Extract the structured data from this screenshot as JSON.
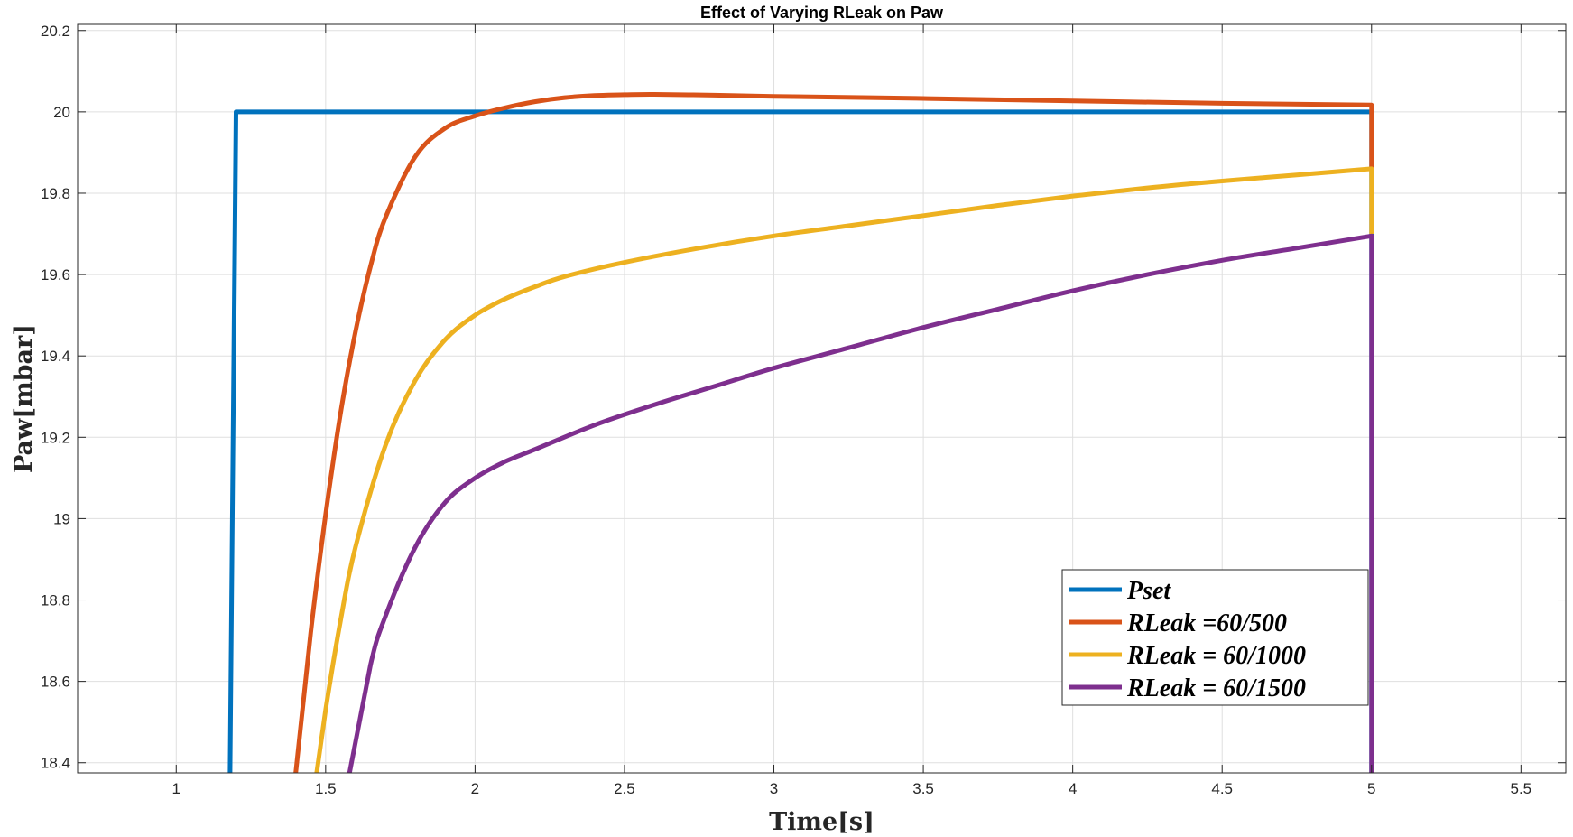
{
  "chart_data": {
    "type": "line",
    "title": "Effect of Varying RLeak on Paw",
    "xlabel": "Time[s]",
    "ylabel": "Paw[mbar]",
    "xlim": [
      0.67,
      5.65
    ],
    "ylim": [
      18.375,
      20.215
    ],
    "xticks": [
      1,
      1.5,
      2,
      2.5,
      3,
      3.5,
      4,
      4.5,
      5,
      5.5
    ],
    "xtick_labels": [
      "1",
      "1.5",
      "2",
      "2.5",
      "3",
      "3.5",
      "4",
      "4.5",
      "5",
      "5.5"
    ],
    "yticks": [
      18.4,
      18.6,
      18.8,
      19,
      19.2,
      19.4,
      19.6,
      19.8,
      20,
      20.2
    ],
    "ytick_labels": [
      "18.4",
      "18.6",
      "18.8",
      "19",
      "19.2",
      "19.4",
      "19.6",
      "19.8",
      "20",
      "20.2"
    ],
    "grid": true,
    "legend_position": "bottom-right",
    "series": [
      {
        "name": "Pset",
        "color": "#0072BD",
        "x": [
          1.18,
          1.2,
          5.0,
          5.0
        ],
        "y": [
          18.375,
          20.0,
          20.0,
          18.375
        ]
      },
      {
        "name": "RLeak =60/500",
        "color": "#D95319",
        "x": [
          1.4,
          1.45,
          1.5,
          1.55,
          1.6,
          1.65,
          1.7,
          1.8,
          1.9,
          2.0,
          2.1,
          2.2,
          2.3,
          2.4,
          2.5,
          2.6,
          2.8,
          3.0,
          3.5,
          4.0,
          4.5,
          5.0,
          5.0,
          5.0
        ],
        "y": [
          18.375,
          18.72,
          19.01,
          19.26,
          19.46,
          19.62,
          19.74,
          19.89,
          19.96,
          19.99,
          20.01,
          20.025,
          20.035,
          20.04,
          20.042,
          20.043,
          20.041,
          20.038,
          20.033,
          20.027,
          20.021,
          20.017,
          19.86,
          19.86
        ]
      },
      {
        "name": "RLeak = 60/1000",
        "color": "#EDB120",
        "x": [
          1.47,
          1.5,
          1.55,
          1.6,
          1.7,
          1.8,
          1.9,
          2.0,
          2.1,
          2.2,
          2.3,
          2.5,
          2.75,
          3.0,
          3.25,
          3.5,
          3.75,
          4.0,
          4.25,
          4.5,
          4.75,
          5.0,
          5.0
        ],
        "y": [
          18.375,
          18.53,
          18.75,
          18.93,
          19.18,
          19.34,
          19.44,
          19.5,
          19.54,
          19.57,
          19.595,
          19.63,
          19.665,
          19.695,
          19.72,
          19.745,
          19.77,
          19.793,
          19.813,
          19.83,
          19.845,
          19.86,
          19.7
        ]
      },
      {
        "name": "RLeak = 60/1500",
        "color": "#7E2F8E",
        "x": [
          1.58,
          1.65,
          1.7,
          1.8,
          1.9,
          2.0,
          2.1,
          2.2,
          2.4,
          2.6,
          2.8,
          3.0,
          3.25,
          3.5,
          3.75,
          4.0,
          4.25,
          4.5,
          4.75,
          5.0,
          5.0
        ],
        "y": [
          18.375,
          18.64,
          18.76,
          18.93,
          19.04,
          19.1,
          19.14,
          19.17,
          19.23,
          19.28,
          19.325,
          19.37,
          19.42,
          19.47,
          19.515,
          19.56,
          19.6,
          19.635,
          19.665,
          19.695,
          18.375
        ]
      }
    ]
  }
}
